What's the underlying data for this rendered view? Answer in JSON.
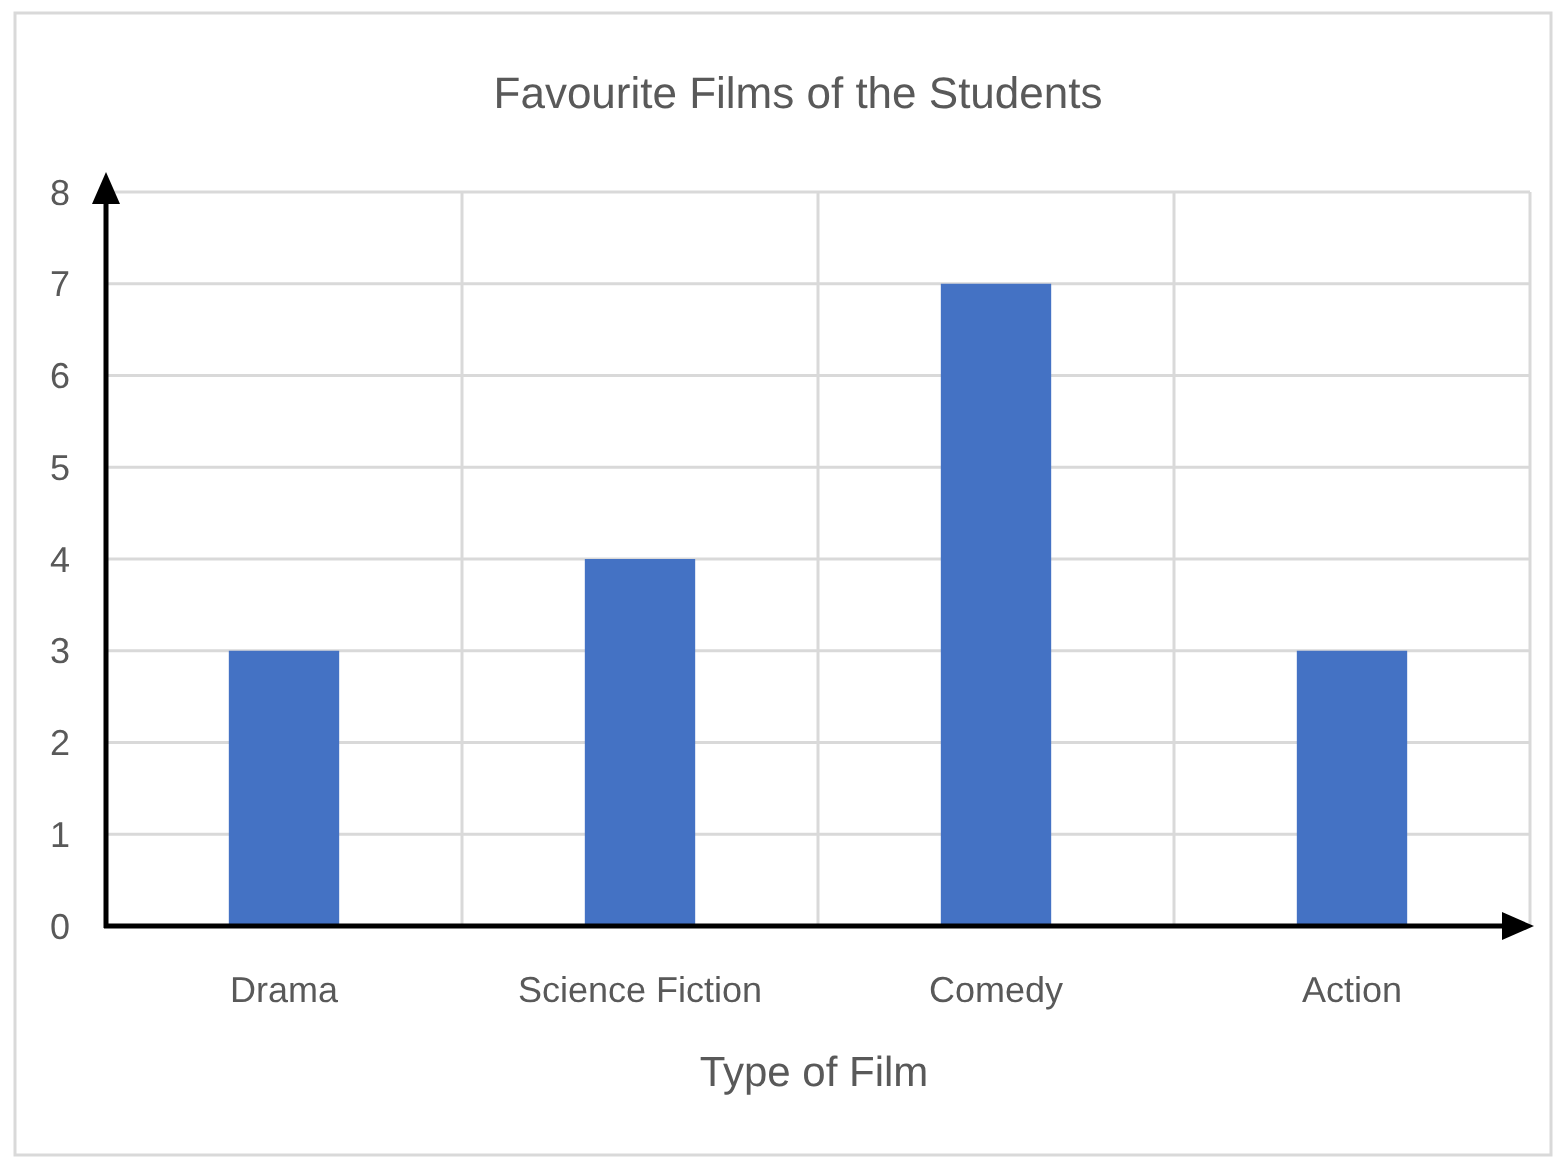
{
  "chart_data": {
    "type": "bar",
    "title": "Favourite Films of the Students",
    "xlabel": "Type of Film",
    "categories": [
      "Drama",
      "Science Fiction",
      "Comedy",
      "Action"
    ],
    "series": [
      {
        "color": "#4472c4",
        "values": [
          3,
          4,
          7,
          3
        ]
      }
    ],
    "ylim": [
      0,
      8
    ],
    "yticks": [
      0,
      1,
      2,
      3,
      4,
      5,
      6,
      7,
      8
    ],
    "grid": true
  }
}
